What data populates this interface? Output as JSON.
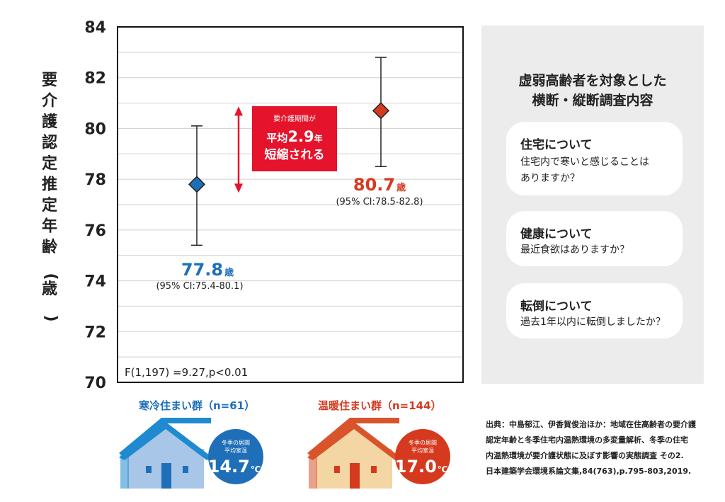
{
  "chart_data": {
    "type": "scatter",
    "ylabel": "要介護認定推定年齢（歳）",
    "ylim": [
      70,
      84
    ],
    "yticks": [
      70,
      72,
      74,
      76,
      78,
      80,
      82,
      84
    ],
    "grid": true,
    "stat_annotation": "F(1,197) =9.27,p<0.01",
    "series": [
      {
        "name": "寒冷住まい群（n=61）",
        "value": 77.8,
        "ci_low": 75.4,
        "ci_high": 80.1,
        "value_label": "77.8",
        "unit": "歳",
        "ci_label": "(95% CI:75.4-80.1)",
        "color": "#1f6fb8"
      },
      {
        "name": "温暖住まい群（n=144）",
        "value": 80.7,
        "ci_low": 78.5,
        "ci_high": 82.8,
        "value_label": "80.7",
        "unit": "歳",
        "ci_label": "(95% CI:78.5-82.8)",
        "color": "#d53a1f"
      }
    ],
    "callout": {
      "line1": "要介護期間が",
      "line2_prefix": "平均",
      "line2_value": "2.9",
      "line2_suffix": "年",
      "line3": "短縮される",
      "color": "#e5132b"
    }
  },
  "groups": [
    {
      "label": "寒冷住まい群（n=61）",
      "temp_caption_1": "冬季の居間",
      "temp_caption_2": "平均室温",
      "temp_value": "14.7",
      "temp_unit": "℃",
      "roof_color": "#1f8ad0",
      "wall_color": "#a7c6e8",
      "badge_color": "#1f6fb8"
    },
    {
      "label": "温暖住まい群（n=144）",
      "temp_caption_1": "冬季の居間",
      "temp_caption_2": "平均室温",
      "temp_value": "17.0",
      "temp_unit": "℃",
      "roof_color": "#d9542b",
      "wall_color": "#f3d6a4",
      "badge_color": "#d53a1f"
    }
  ],
  "panel": {
    "title_line1": "虚弱高齢者を対象とした",
    "title_line2": "横断・縦断調査内容",
    "cards": [
      {
        "title": "住宅について",
        "text_lines": [
          "住宅内で寒いと感じることは",
          "ありますか？"
        ]
      },
      {
        "title": "健康について",
        "text_lines": [
          "最近食欲はありますか？"
        ]
      },
      {
        "title": "転倒について",
        "text_lines": [
          "過去1年以内に転倒しましたか？"
        ]
      }
    ]
  },
  "source": {
    "lines": [
      "出典：中島郁江、伊香賀俊治ほか：地域在住高齢者の要介護",
      "認定年齢と冬季住宅内温熱環境の多変量解析、冬季の住宅",
      "内温熱環境が要介護状態に及ぼす影響の実態調査 その2.",
      "日本建築学会環境系論文集,84(763),p.795-803,2019."
    ]
  }
}
